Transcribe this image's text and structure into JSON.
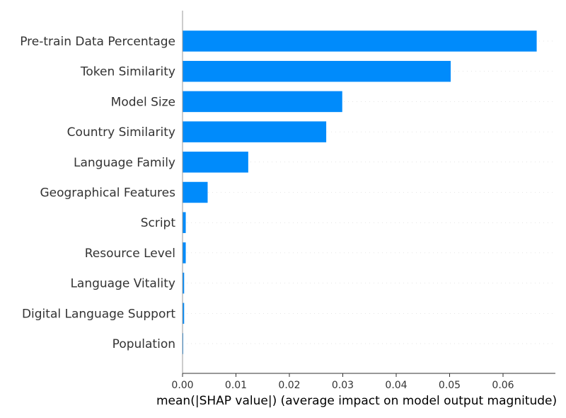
{
  "chart_data": {
    "type": "bar",
    "orientation": "horizontal",
    "categories": [
      "Pre-train Data Percentage",
      "Token Similarity",
      "Model Size",
      "Country Similarity",
      "Language Family",
      "Geographical Features",
      "Script",
      "Resource Level",
      "Language Vitality",
      "Digital Language Support",
      "Population"
    ],
    "values": [
      0.0663,
      0.0502,
      0.0299,
      0.0269,
      0.0123,
      0.0047,
      0.0006,
      0.0006,
      0.0003,
      0.0003,
      0.0001
    ],
    "xlabel": "mean(|SHAP value|) (average impact on model output magnitude)",
    "ylabel": "",
    "xlim": [
      0.0,
      0.0698
    ],
    "xticks": [
      0.0,
      0.01,
      0.02,
      0.03,
      0.04,
      0.05,
      0.06
    ],
    "xtick_labels": [
      "0.00",
      "0.01",
      "0.02",
      "0.03",
      "0.04",
      "0.05",
      "0.06"
    ],
    "bar_color": "#008bfb",
    "grid": false,
    "legend": "none"
  }
}
